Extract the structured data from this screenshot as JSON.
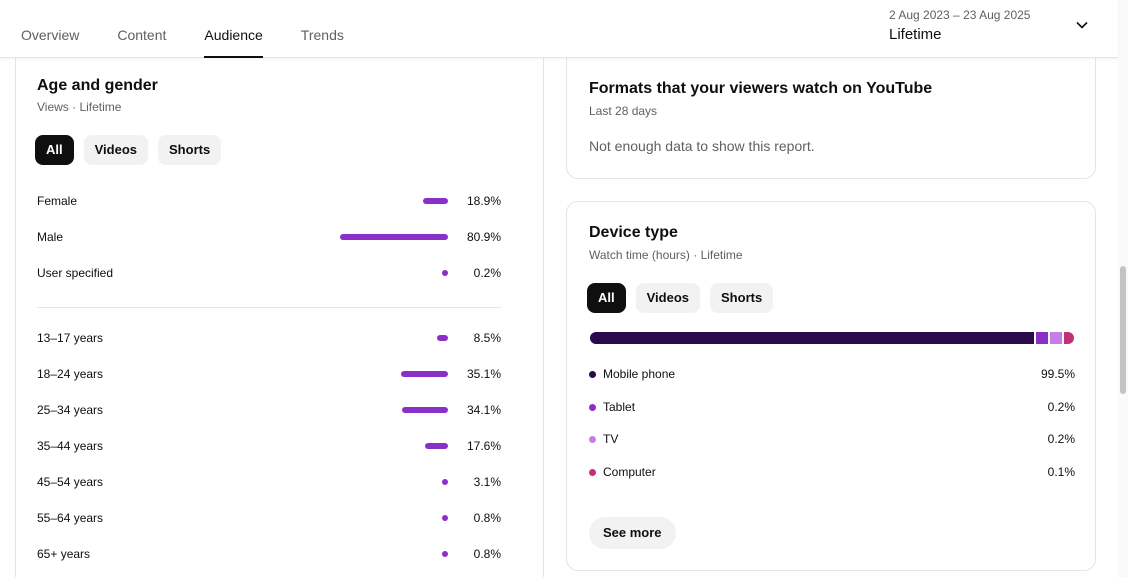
{
  "tabs": [
    {
      "label": "Overview"
    },
    {
      "label": "Content"
    },
    {
      "label": "Audience"
    },
    {
      "label": "Trends"
    }
  ],
  "date_picker": {
    "range": "2 Aug 2023 – 23 Aug 2025",
    "value": "Lifetime",
    "icon": "chevron-down-icon"
  },
  "age_gender": {
    "title": "Age and gender",
    "subtitle": "Views · Lifetime",
    "chips": [
      "All",
      "Videos",
      "Shorts"
    ],
    "gender": [
      {
        "label": "Female",
        "value": "18.9%",
        "pct": 18.9
      },
      {
        "label": "Male",
        "value": "80.9%",
        "pct": 80.9
      },
      {
        "label": "User specified",
        "value": "0.2%",
        "pct": 0.2
      }
    ],
    "ages": [
      {
        "label": "13–17 years",
        "value": "8.5%",
        "pct": 8.5
      },
      {
        "label": "18–24 years",
        "value": "35.1%",
        "pct": 35.1
      },
      {
        "label": "25–34 years",
        "value": "34.1%",
        "pct": 34.1
      },
      {
        "label": "35–44 years",
        "value": "17.6%",
        "pct": 17.6
      },
      {
        "label": "45–54 years",
        "value": "3.1%",
        "pct": 3.1
      },
      {
        "label": "55–64 years",
        "value": "0.8%",
        "pct": 0.8
      },
      {
        "label": "65+ years",
        "value": "0.8%",
        "pct": 0.8
      }
    ],
    "bar_color": "#8b2fc9"
  },
  "formats": {
    "title": "Formats that your viewers watch on YouTube",
    "subtitle": "Last 28 days",
    "note": "Not enough data to show this report."
  },
  "device": {
    "title": "Device type",
    "subtitle": "Watch time (hours) · Lifetime",
    "chips": [
      "All",
      "Videos",
      "Shorts"
    ],
    "items": [
      {
        "label": "Mobile phone",
        "value": "99.5%",
        "pct": 99.5,
        "color": "#2a0a4a"
      },
      {
        "label": "Tablet",
        "value": "0.2%",
        "pct": 0.2,
        "color": "#8b2fc9"
      },
      {
        "label": "TV",
        "value": "0.2%",
        "pct": 0.2,
        "color": "#c77de8"
      },
      {
        "label": "Computer",
        "value": "0.1%",
        "pct": 0.1,
        "color": "#c2307a"
      }
    ],
    "see_more": "See more"
  }
}
